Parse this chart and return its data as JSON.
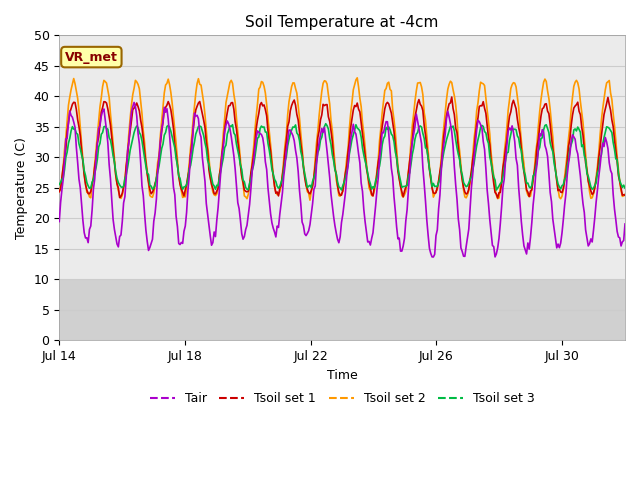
{
  "title": "Soil Temperature at -4cm",
  "xlabel": "Time",
  "ylabel": "Temperature (C)",
  "ylim": [
    0,
    50
  ],
  "x_ticks_days": [
    0,
    4,
    8,
    12,
    16
  ],
  "x_tick_labels": [
    "Jul 14",
    "Jul 18",
    "Jul 22",
    "Jul 26",
    "Jul 30"
  ],
  "yticks": [
    0,
    5,
    10,
    15,
    20,
    25,
    30,
    35,
    40,
    45,
    50
  ],
  "grid_color": "#cccccc",
  "plot_bg": "#ebebeb",
  "fig_bg": "#ffffff",
  "dark_band_color": "#d0d0d0",
  "line_colors": {
    "Tair": "#aa00cc",
    "Tsoil1": "#cc0000",
    "Tsoil2": "#ff9900",
    "Tsoil3": "#00bb44"
  },
  "legend_labels": [
    "Tair",
    "Tsoil set 1",
    "Tsoil set 2",
    "Tsoil set 3"
  ],
  "annotation_text": "VR_met",
  "annotation_bg": "#ffffaa",
  "annotation_border": "#996600",
  "annotation_text_color": "#880000",
  "n_points": 432
}
